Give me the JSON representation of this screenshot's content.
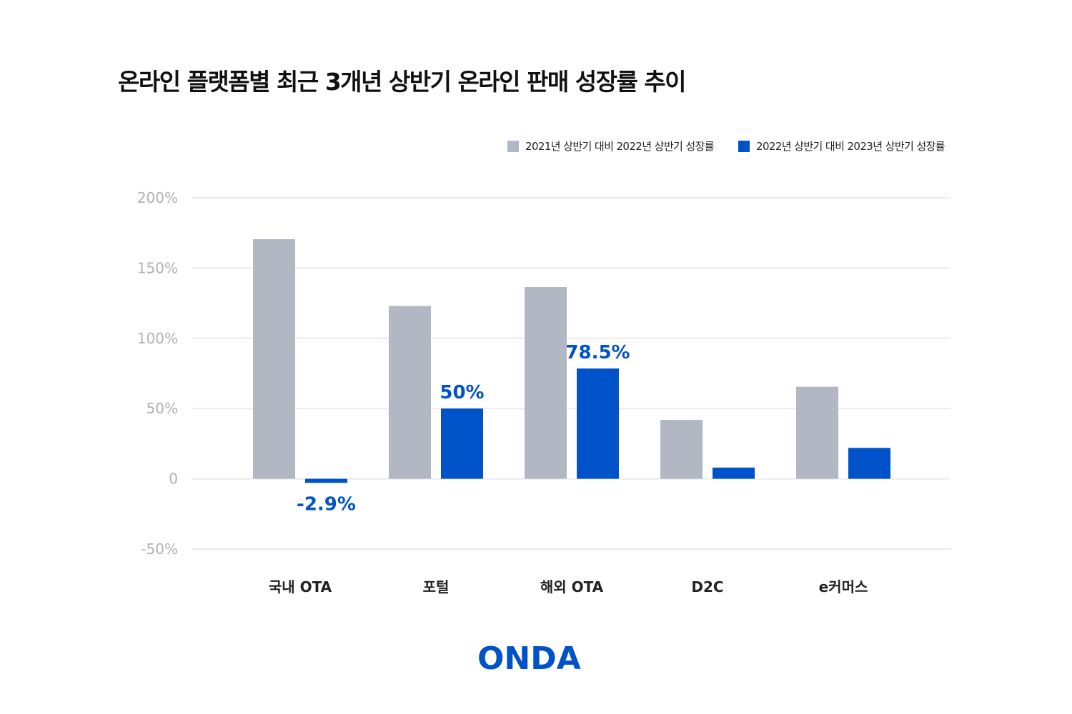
{
  "title": "온라인 플랫폼별 최근 3개년 상반기 온라인 판매 성장률 추이",
  "logo": "ONDA",
  "colors": {
    "series1": "#b1b7c3",
    "series2": "#0052c8",
    "grid": "#ebebef",
    "label": "#0052c8"
  },
  "chart_data": {
    "type": "bar",
    "title": "온라인 플랫폼별 최근 3개년 상반기 온라인 판매 성장률 추이",
    "xlabel": "",
    "ylabel": "",
    "categories": [
      "국내 OTA",
      "포털",
      "해외 OTA",
      "D2C",
      "e커머스"
    ],
    "series": [
      {
        "name": "2021년 상반기 대비 2022년 상반기 성장률",
        "values": [
          170.5,
          123,
          136.5,
          42,
          65.5
        ]
      },
      {
        "name": "2022년 상반기 대비 2023년 상반기 성장률",
        "values": [
          -2.9,
          50,
          78.5,
          8,
          22
        ]
      }
    ],
    "data_labels": [
      {
        "series": 1,
        "category": 0,
        "text": "-2.9%"
      },
      {
        "series": 1,
        "category": 1,
        "text": "50%"
      },
      {
        "series": 1,
        "category": 2,
        "text": "78.5%"
      }
    ],
    "yticks": [
      200,
      150,
      100,
      50,
      0,
      -50
    ],
    "ytick_labels": [
      "200%",
      "150%",
      "100%",
      "50%",
      "0",
      "-50%"
    ],
    "ylim": [
      -50,
      200
    ],
    "grid": true,
    "legend": "top-right"
  }
}
